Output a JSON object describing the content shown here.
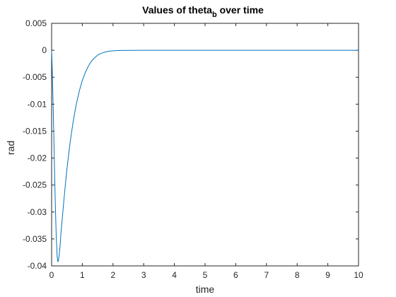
{
  "chart_data": {
    "type": "line",
    "title": "Values of theta",
    "title_subscript": "b",
    "title_suffix": " over time",
    "xlabel": "time",
    "ylabel": "rad",
    "xlim": [
      0,
      10
    ],
    "ylim": [
      -0.04,
      0.005
    ],
    "grid": false,
    "x_ticks": [
      0,
      1,
      2,
      3,
      4,
      5,
      6,
      7,
      8,
      9,
      10
    ],
    "x_tick_labels": [
      "0",
      "1",
      "2",
      "3",
      "4",
      "5",
      "6",
      "7",
      "8",
      "9",
      "10"
    ],
    "y_ticks": [
      0.005,
      0,
      -0.005,
      -0.01,
      -0.015,
      -0.02,
      -0.025,
      -0.03,
      -0.035,
      -0.04
    ],
    "y_tick_labels": [
      "0.005",
      "0",
      "-0.005",
      "-0.01",
      "-0.015",
      "-0.02",
      "-0.025",
      "-0.03",
      "-0.035",
      "-0.04"
    ],
    "series": [
      {
        "color": "#0072BD",
        "x": [
          0,
          0.02,
          0.05,
          0.08,
          0.1,
          0.12,
          0.15,
          0.18,
          0.2,
          0.22,
          0.25,
          0.28,
          0.3,
          0.35,
          0.4,
          0.45,
          0.5,
          0.6,
          0.7,
          0.8,
          0.9,
          1.0,
          1.1,
          1.2,
          1.3,
          1.4,
          1.5,
          1.6,
          1.7,
          1.8,
          1.9,
          2.0,
          2.2,
          2.5,
          3,
          4,
          5,
          6,
          7,
          8,
          9,
          10
        ],
        "y": [
          0,
          -0.0035,
          -0.0105,
          -0.018,
          -0.0235,
          -0.0285,
          -0.0345,
          -0.0382,
          -0.0392,
          -0.0391,
          -0.0378,
          -0.036,
          -0.0342,
          -0.031,
          -0.0278,
          -0.0248,
          -0.022,
          -0.0172,
          -0.0133,
          -0.0101,
          -0.0076,
          -0.0056,
          -0.0041,
          -0.0029,
          -0.002,
          -0.0014,
          -0.0009,
          -0.0006,
          -0.0004,
          -0.00025,
          -0.00015,
          -0.0001,
          -4e-05,
          -1e-05,
          0,
          0,
          0,
          0,
          0,
          0,
          0,
          0
        ]
      }
    ]
  }
}
